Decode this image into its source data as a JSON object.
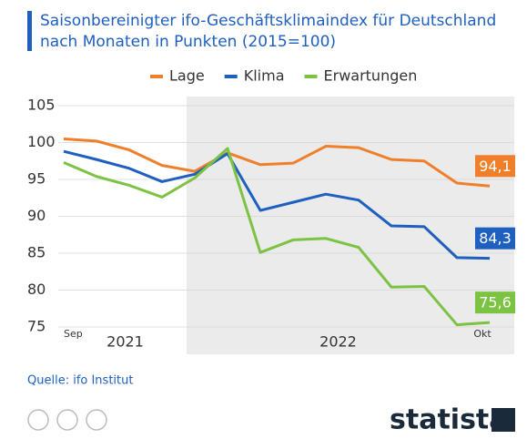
{
  "chart_data": {
    "type": "line",
    "title": [
      "Saisonbereinigter ifo-Geschäftsklimaindex für Deutschland",
      "nach Monaten in Punkten (2015=100)"
    ],
    "categories": [
      "Sep",
      null,
      null,
      null,
      null,
      null,
      null,
      null,
      null,
      null,
      null,
      null,
      null,
      "Okt"
    ],
    "x_groups": [
      "2021",
      "2022"
    ],
    "series": [
      {
        "name": "Lage",
        "color": "#f07f2c",
        "values": [
          100.5,
          100.2,
          99.0,
          96.9,
          96.1,
          98.6,
          97.0,
          97.2,
          99.5,
          99.3,
          97.7,
          97.5,
          94.5,
          94.1
        ],
        "value_labels": [
          null,
          null,
          null,
          null,
          null,
          null,
          null,
          null,
          null,
          null,
          null,
          null,
          null,
          "94,1"
        ]
      },
      {
        "name": "Klima",
        "color": "#1f5fbf",
        "values": [
          98.8,
          97.7,
          96.5,
          94.7,
          95.7,
          98.5,
          90.8,
          91.9,
          93.0,
          92.2,
          88.7,
          88.6,
          84.4,
          84.3
        ],
        "value_labels": [
          null,
          null,
          null,
          null,
          null,
          null,
          null,
          null,
          null,
          null,
          null,
          null,
          null,
          "84,3"
        ]
      },
      {
        "name": "Erwartungen",
        "color": "#7cc243",
        "values": [
          97.3,
          95.4,
          94.2,
          92.6,
          95.2,
          99.2,
          85.1,
          86.8,
          87.0,
          85.8,
          80.4,
          80.5,
          75.3,
          75.6
        ],
        "value_labels": [
          null,
          null,
          null,
          null,
          null,
          null,
          null,
          null,
          null,
          null,
          null,
          null,
          null,
          "75,6"
        ]
      }
    ],
    "ylim": [
      75,
      105
    ],
    "yticks": [
      75,
      80,
      85,
      90,
      95,
      100,
      105
    ],
    "grid": true,
    "source": "Quelle: ifo Institut",
    "brand": "statista"
  }
}
